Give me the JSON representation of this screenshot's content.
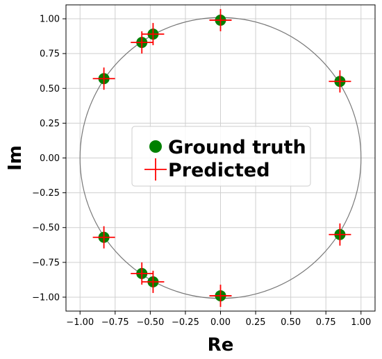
{
  "chart_data": {
    "type": "scatter",
    "xlabel": "Re",
    "ylabel": "Im",
    "xlim": [
      -1.1,
      1.1
    ],
    "ylim": [
      -1.1,
      1.1
    ],
    "xticks": [
      -1.0,
      -0.75,
      -0.5,
      -0.25,
      0.0,
      0.25,
      0.5,
      0.75,
      1.0
    ],
    "yticks": [
      -1.0,
      -0.75,
      -0.5,
      -0.25,
      0.0,
      0.25,
      0.5,
      0.75,
      1.0
    ],
    "xtick_labels": [
      "−1.00",
      "−0.75",
      "−0.50",
      "−0.25",
      "0.00",
      "0.25",
      "0.50",
      "0.75",
      "1.00"
    ],
    "ytick_labels": [
      "−1.00",
      "−0.75",
      "−0.50",
      "−0.25",
      "0.00",
      "0.25",
      "0.50",
      "0.75",
      "1.00"
    ],
    "grid": true,
    "unit_circle": true,
    "legend_position": "center",
    "series": [
      {
        "name": "Ground truth",
        "marker": "circle",
        "color": "#008000",
        "points": [
          [
            0.0,
            0.99
          ],
          [
            -0.48,
            0.89
          ],
          [
            -0.56,
            0.83
          ],
          [
            -0.83,
            0.57
          ],
          [
            0.85,
            0.55
          ],
          [
            -0.83,
            -0.57
          ],
          [
            0.85,
            -0.55
          ],
          [
            -0.56,
            -0.83
          ],
          [
            -0.48,
            -0.89
          ],
          [
            0.0,
            -0.99
          ]
        ]
      },
      {
        "name": "Predicted",
        "marker": "plus",
        "color": "#ff0000",
        "points": [
          [
            0.0,
            0.99
          ],
          [
            -0.48,
            0.89
          ],
          [
            -0.56,
            0.83
          ],
          [
            -0.83,
            0.57
          ],
          [
            0.85,
            0.55
          ],
          [
            -0.83,
            -0.57
          ],
          [
            0.85,
            -0.55
          ],
          [
            -0.56,
            -0.83
          ],
          [
            -0.48,
            -0.89
          ],
          [
            0.0,
            -0.99
          ]
        ]
      }
    ]
  }
}
